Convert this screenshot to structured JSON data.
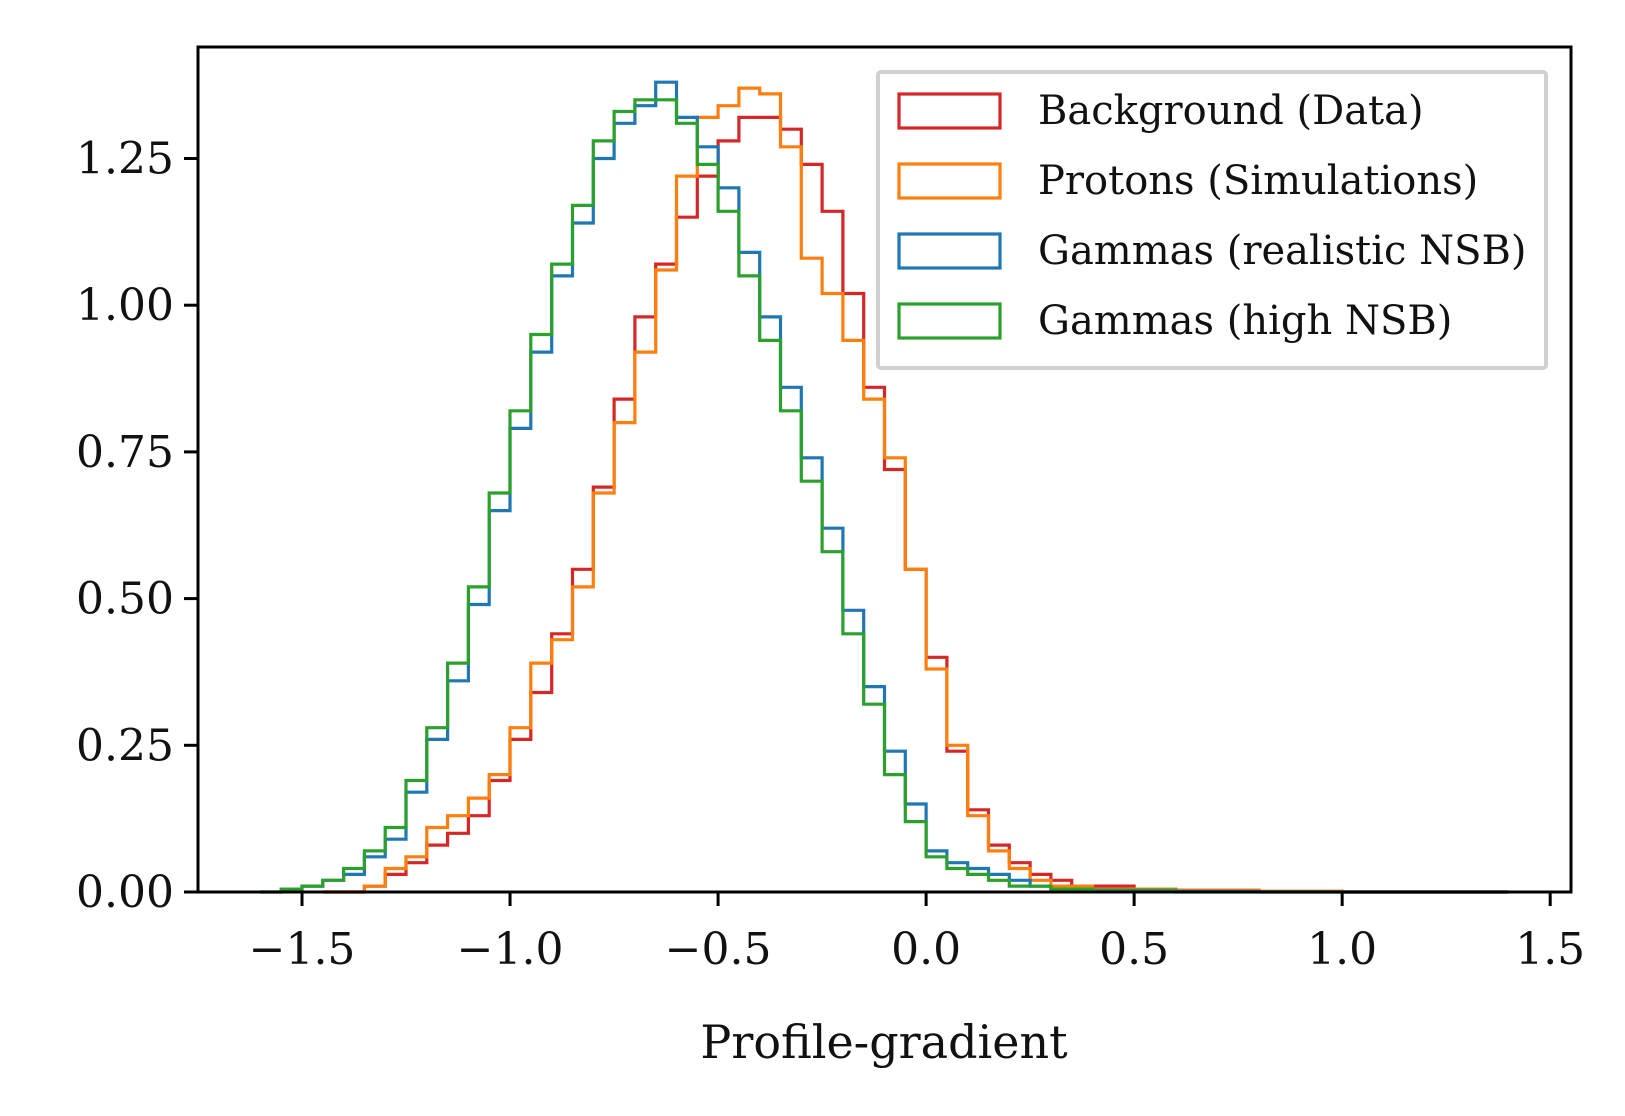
{
  "chart_data": {
    "type": "step-histogram",
    "title": "",
    "xlabel": "Profile-gradient",
    "ylabel": "",
    "xlim": [
      -1.75,
      1.55
    ],
    "ylim": [
      0.0,
      1.44
    ],
    "xticks": [
      -1.5,
      -1.0,
      -0.5,
      0.0,
      0.5,
      1.0,
      1.5
    ],
    "xtick_labels": [
      "−1.5",
      "−1.0",
      "−0.5",
      "0.0",
      "0.5",
      "1.0",
      "1.5"
    ],
    "yticks": [
      0.0,
      0.25,
      0.5,
      0.75,
      1.0,
      1.25
    ],
    "ytick_labels": [
      "0.00",
      "0.25",
      "0.50",
      "0.75",
      "1.00",
      "1.25"
    ],
    "legend_position": "top-right",
    "series": [
      {
        "name": "Background (Data)",
        "color": "#d62728",
        "points": [
          [
            -1.45,
            0.0
          ],
          [
            -1.4,
            0.0
          ],
          [
            -1.35,
            0.01
          ],
          [
            -1.3,
            0.03
          ],
          [
            -1.25,
            0.05
          ],
          [
            -1.2,
            0.08
          ],
          [
            -1.15,
            0.1
          ],
          [
            -1.1,
            0.13
          ],
          [
            -1.05,
            0.19
          ],
          [
            -1.0,
            0.26
          ],
          [
            -0.95,
            0.34
          ],
          [
            -0.9,
            0.44
          ],
          [
            -0.85,
            0.55
          ],
          [
            -0.8,
            0.69
          ],
          [
            -0.75,
            0.84
          ],
          [
            -0.7,
            0.98
          ],
          [
            -0.65,
            1.07
          ],
          [
            -0.6,
            1.15
          ],
          [
            -0.55,
            1.22
          ],
          [
            -0.5,
            1.28
          ],
          [
            -0.45,
            1.32
          ],
          [
            -0.4,
            1.32
          ],
          [
            -0.35,
            1.3
          ],
          [
            -0.3,
            1.24
          ],
          [
            -0.25,
            1.16
          ],
          [
            -0.2,
            1.02
          ],
          [
            -0.15,
            0.86
          ],
          [
            -0.1,
            0.72
          ],
          [
            -0.05,
            0.55
          ],
          [
            0.0,
            0.4
          ],
          [
            0.05,
            0.24
          ],
          [
            0.1,
            0.14
          ],
          [
            0.15,
            0.08
          ],
          [
            0.2,
            0.05
          ],
          [
            0.25,
            0.03
          ],
          [
            0.3,
            0.02
          ],
          [
            0.35,
            0.01
          ],
          [
            0.4,
            0.01
          ],
          [
            0.5,
            0.005
          ],
          [
            0.6,
            0.003
          ],
          [
            0.8,
            0.001
          ],
          [
            1.0,
            0.0
          ],
          [
            1.4,
            0.0
          ]
        ]
      },
      {
        "name": "Protons (Simulations)",
        "color": "#ff7f0e",
        "points": [
          [
            -1.45,
            0.0
          ],
          [
            -1.4,
            0.0
          ],
          [
            -1.35,
            0.01
          ],
          [
            -1.3,
            0.04
          ],
          [
            -1.25,
            0.06
          ],
          [
            -1.2,
            0.11
          ],
          [
            -1.15,
            0.13
          ],
          [
            -1.1,
            0.16
          ],
          [
            -1.05,
            0.2
          ],
          [
            -1.0,
            0.28
          ],
          [
            -0.95,
            0.39
          ],
          [
            -0.9,
            0.43
          ],
          [
            -0.85,
            0.52
          ],
          [
            -0.8,
            0.68
          ],
          [
            -0.75,
            0.8
          ],
          [
            -0.7,
            0.92
          ],
          [
            -0.65,
            1.06
          ],
          [
            -0.6,
            1.22
          ],
          [
            -0.55,
            1.32
          ],
          [
            -0.5,
            1.34
          ],
          [
            -0.45,
            1.37
          ],
          [
            -0.4,
            1.36
          ],
          [
            -0.35,
            1.27
          ],
          [
            -0.3,
            1.08
          ],
          [
            -0.25,
            1.02
          ],
          [
            -0.2,
            0.94
          ],
          [
            -0.15,
            0.84
          ],
          [
            -0.1,
            0.74
          ],
          [
            -0.05,
            0.55
          ],
          [
            0.0,
            0.38
          ],
          [
            0.05,
            0.25
          ],
          [
            0.1,
            0.13
          ],
          [
            0.15,
            0.07
          ],
          [
            0.2,
            0.04
          ],
          [
            0.25,
            0.02
          ],
          [
            0.3,
            0.01
          ],
          [
            0.4,
            0.005
          ],
          [
            0.6,
            0.003
          ],
          [
            0.8,
            0.001
          ],
          [
            1.0,
            0.0
          ],
          [
            1.4,
            0.0
          ]
        ]
      },
      {
        "name": "Gammas (realistic NSB)",
        "color": "#1f77b4",
        "points": [
          [
            -1.6,
            0.0
          ],
          [
            -1.55,
            0.003
          ],
          [
            -1.5,
            0.01
          ],
          [
            -1.45,
            0.02
          ],
          [
            -1.4,
            0.03
          ],
          [
            -1.35,
            0.06
          ],
          [
            -1.3,
            0.09
          ],
          [
            -1.25,
            0.17
          ],
          [
            -1.2,
            0.26
          ],
          [
            -1.15,
            0.36
          ],
          [
            -1.1,
            0.49
          ],
          [
            -1.05,
            0.65
          ],
          [
            -1.0,
            0.79
          ],
          [
            -0.95,
            0.92
          ],
          [
            -0.9,
            1.05
          ],
          [
            -0.85,
            1.14
          ],
          [
            -0.8,
            1.25
          ],
          [
            -0.75,
            1.31
          ],
          [
            -0.7,
            1.34
          ],
          [
            -0.65,
            1.38
          ],
          [
            -0.6,
            1.32
          ],
          [
            -0.55,
            1.27
          ],
          [
            -0.5,
            1.2
          ],
          [
            -0.45,
            1.09
          ],
          [
            -0.4,
            0.98
          ],
          [
            -0.35,
            0.86
          ],
          [
            -0.3,
            0.74
          ],
          [
            -0.25,
            0.62
          ],
          [
            -0.2,
            0.48
          ],
          [
            -0.15,
            0.35
          ],
          [
            -0.1,
            0.24
          ],
          [
            -0.05,
            0.15
          ],
          [
            0.0,
            0.07
          ],
          [
            0.05,
            0.05
          ],
          [
            0.1,
            0.04
          ],
          [
            0.15,
            0.03
          ],
          [
            0.2,
            0.02
          ],
          [
            0.25,
            0.01
          ],
          [
            0.3,
            0.005
          ],
          [
            0.4,
            0.003
          ],
          [
            0.6,
            0.001
          ],
          [
            0.8,
            0.0
          ],
          [
            1.4,
            0.0
          ]
        ]
      },
      {
        "name": "Gammas (high NSB)",
        "color": "#2ca02c",
        "points": [
          [
            -1.6,
            0.0
          ],
          [
            -1.55,
            0.005
          ],
          [
            -1.5,
            0.01
          ],
          [
            -1.45,
            0.02
          ],
          [
            -1.4,
            0.04
          ],
          [
            -1.35,
            0.07
          ],
          [
            -1.3,
            0.11
          ],
          [
            -1.25,
            0.19
          ],
          [
            -1.2,
            0.28
          ],
          [
            -1.15,
            0.39
          ],
          [
            -1.1,
            0.52
          ],
          [
            -1.05,
            0.68
          ],
          [
            -1.0,
            0.82
          ],
          [
            -0.95,
            0.95
          ],
          [
            -0.9,
            1.07
          ],
          [
            -0.85,
            1.17
          ],
          [
            -0.8,
            1.28
          ],
          [
            -0.75,
            1.33
          ],
          [
            -0.7,
            1.35
          ],
          [
            -0.65,
            1.35
          ],
          [
            -0.6,
            1.31
          ],
          [
            -0.55,
            1.24
          ],
          [
            -0.5,
            1.16
          ],
          [
            -0.45,
            1.05
          ],
          [
            -0.4,
            0.94
          ],
          [
            -0.35,
            0.82
          ],
          [
            -0.3,
            0.7
          ],
          [
            -0.25,
            0.58
          ],
          [
            -0.2,
            0.44
          ],
          [
            -0.15,
            0.32
          ],
          [
            -0.1,
            0.2
          ],
          [
            -0.05,
            0.12
          ],
          [
            0.0,
            0.06
          ],
          [
            0.05,
            0.04
          ],
          [
            0.1,
            0.03
          ],
          [
            0.15,
            0.02
          ],
          [
            0.2,
            0.01
          ],
          [
            0.3,
            0.005
          ],
          [
            0.4,
            0.002
          ],
          [
            0.6,
            0.0
          ],
          [
            1.4,
            0.0
          ]
        ]
      }
    ]
  }
}
